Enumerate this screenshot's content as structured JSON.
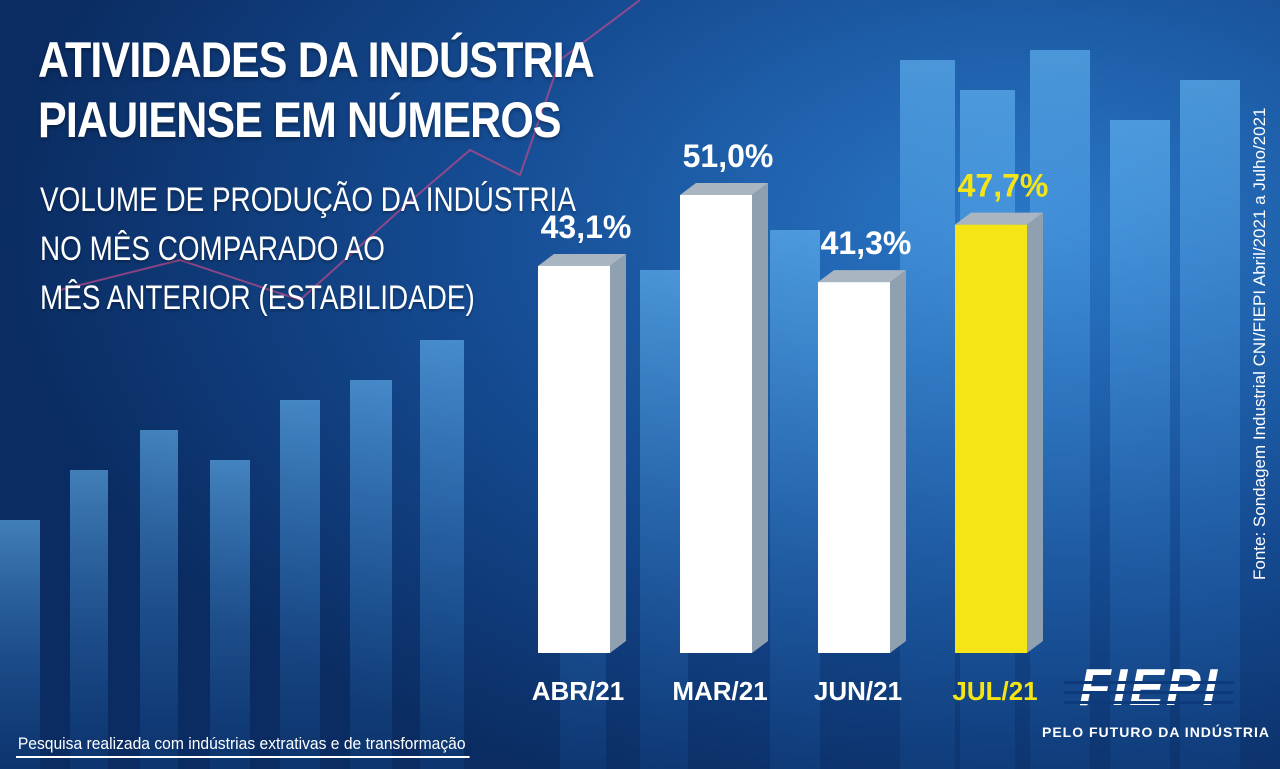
{
  "title_line1": "ATIVIDADES DA INDÚSTRIA",
  "title_line2": "PIAUIENSE EM NÚMEROS",
  "subtitle_line1": "VOLUME DE PRODUÇÃO DA INDÚSTRIA",
  "subtitle_line2": "NO MÊS COMPARADO AO",
  "subtitle_line3": "MÊS ANTERIOR (ESTABILIDADE)",
  "source": "Fonte: Sondagem Industrial CNI/FIEPI Abril/2021 a Julho/2021",
  "note": "Pesquisa realizada com indústrias extrativas e de transformação",
  "logo_text": "FIEPI",
  "logo_tagline": "PELO FUTURO DA INDÚSTRIA",
  "colors": {
    "background": "#0d3a7a",
    "bar": "#ffffff",
    "highlight_bar": "#f5e516",
    "highlight_text": "#f5e516",
    "bar_side": "#8fa0b0"
  },
  "chart_data": {
    "type": "bar",
    "categories": [
      "ABR/21",
      "MAR/21",
      "JUN/21",
      "JUL/21"
    ],
    "values": [
      43.1,
      51.0,
      41.3,
      47.7
    ],
    "value_labels": [
      "43,1%",
      "51,0%",
      "41,3%",
      "47,7%"
    ],
    "highlight_index": 3,
    "style": "3d"
  }
}
